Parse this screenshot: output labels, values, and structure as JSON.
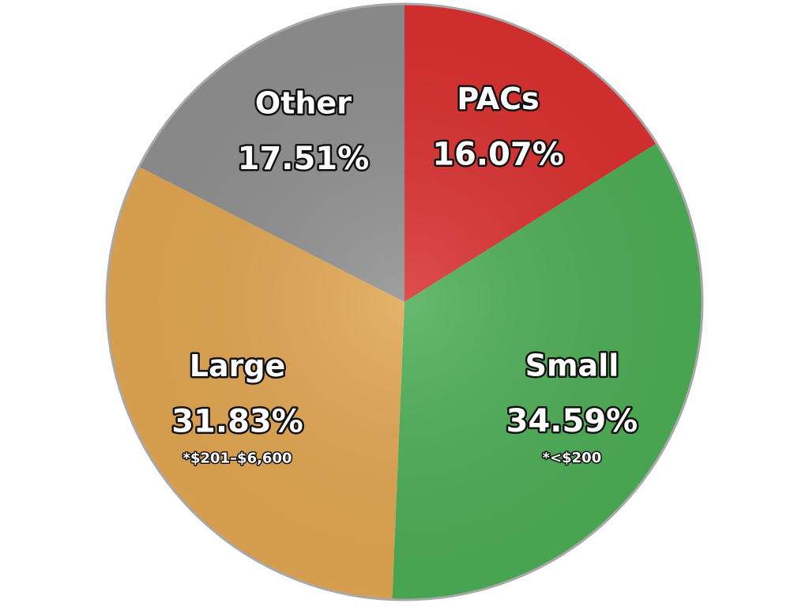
{
  "chart_data": {
    "type": "pie",
    "categories": [
      "PACs",
      "Small",
      "Large",
      "Other"
    ],
    "values": [
      16.07,
      34.59,
      31.83,
      17.51
    ],
    "value_labels": [
      "16.07%",
      "34.59%",
      "31.83%",
      "17.51%"
    ],
    "notes": [
      null,
      "*<$200",
      "*$201–$6,600",
      null
    ],
    "colors": [
      "#d9302f",
      "#4cad55",
      "#e0a551",
      "#8f8f8f"
    ]
  }
}
